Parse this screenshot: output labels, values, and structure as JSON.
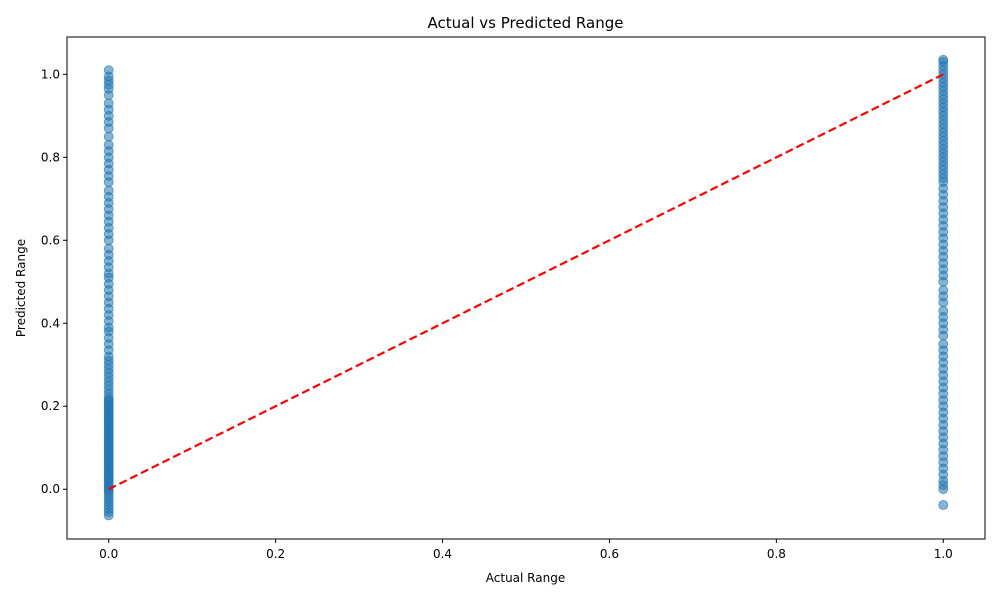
{
  "chart_data": {
    "type": "scatter",
    "title": "Actual vs Predicted Range",
    "xlabel": "Actual Range",
    "ylabel": "Predicted Range",
    "xlim": [
      -0.05,
      1.05
    ],
    "ylim": [
      -0.12,
      1.09
    ],
    "xticks": [
      "0.0",
      "0.2",
      "0.4",
      "0.6",
      "0.8",
      "1.0"
    ],
    "yticks": [
      "0.0",
      "0.2",
      "0.4",
      "0.6",
      "0.8",
      "1.0"
    ],
    "grid": false,
    "point_color": "#1f77b4",
    "reference_line": {
      "x": [
        0,
        1
      ],
      "y": [
        0,
        1
      ],
      "color": "#ff0000",
      "style": "dashed"
    },
    "series": [
      {
        "x": 0,
        "y": [
          -0.063,
          -0.055,
          -0.048,
          -0.04,
          -0.032,
          -0.025,
          -0.018,
          -0.01,
          -0.004,
          0.0,
          0.005,
          0.01,
          0.015,
          0.02,
          0.025,
          0.03,
          0.035,
          0.04,
          0.045,
          0.05,
          0.055,
          0.06,
          0.065,
          0.07,
          0.075,
          0.08,
          0.085,
          0.09,
          0.095,
          0.1,
          0.105,
          0.11,
          0.115,
          0.12,
          0.125,
          0.13,
          0.135,
          0.14,
          0.145,
          0.15,
          0.155,
          0.16,
          0.165,
          0.17,
          0.175,
          0.18,
          0.185,
          0.19,
          0.195,
          0.2,
          0.205,
          0.21,
          0.215,
          0.22,
          0.23,
          0.24,
          0.25,
          0.26,
          0.27,
          0.28,
          0.29,
          0.3,
          0.31,
          0.32,
          0.335,
          0.35,
          0.365,
          0.38,
          0.39,
          0.405,
          0.42,
          0.435,
          0.45,
          0.465,
          0.48,
          0.495,
          0.51,
          0.52,
          0.535,
          0.55,
          0.565,
          0.58,
          0.6,
          0.615,
          0.63,
          0.645,
          0.66,
          0.675,
          0.69,
          0.705,
          0.72,
          0.74,
          0.755,
          0.77,
          0.785,
          0.8,
          0.815,
          0.83,
          0.85,
          0.87,
          0.885,
          0.9,
          0.915,
          0.93,
          0.95,
          0.965,
          0.975,
          0.985,
          0.995,
          1.01
        ]
      },
      {
        "x": 1,
        "y": [
          -0.038,
          0.0,
          0.01,
          0.02,
          0.035,
          0.05,
          0.065,
          0.08,
          0.095,
          0.11,
          0.125,
          0.14,
          0.155,
          0.17,
          0.185,
          0.2,
          0.215,
          0.23,
          0.245,
          0.26,
          0.275,
          0.29,
          0.305,
          0.32,
          0.335,
          0.35,
          0.37,
          0.385,
          0.4,
          0.415,
          0.43,
          0.45,
          0.465,
          0.48,
          0.5,
          0.515,
          0.53,
          0.545,
          0.56,
          0.575,
          0.59,
          0.605,
          0.62,
          0.635,
          0.65,
          0.665,
          0.68,
          0.695,
          0.71,
          0.725,
          0.74,
          0.75,
          0.76,
          0.77,
          0.78,
          0.79,
          0.8,
          0.81,
          0.82,
          0.83,
          0.84,
          0.85,
          0.86,
          0.87,
          0.88,
          0.89,
          0.9,
          0.91,
          0.92,
          0.93,
          0.94,
          0.95,
          0.96,
          0.97,
          0.98,
          0.99,
          1.0,
          1.01,
          1.02,
          1.03,
          1.035
        ]
      }
    ]
  }
}
